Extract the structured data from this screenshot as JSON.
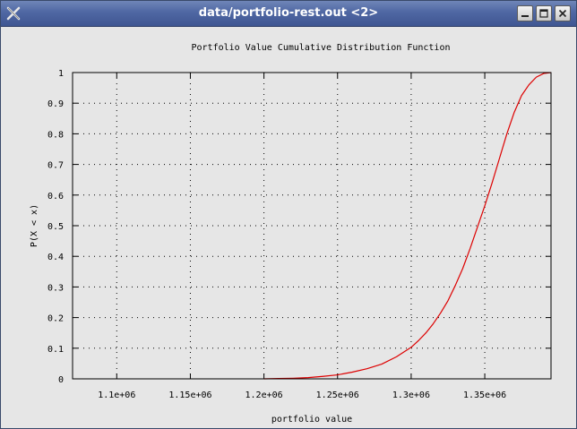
{
  "window": {
    "title": "data/portfolio-rest.out <2>",
    "buttons": [
      "minimize",
      "maximize",
      "close"
    ],
    "icons": [
      "app-x-icon",
      "minimize-icon",
      "maximize-icon",
      "close-icon"
    ]
  },
  "colors": {
    "titlebar": "#4f67a3",
    "plot_background": "#e6e6e6",
    "curve": "#dd0000"
  },
  "chart_data": {
    "type": "line",
    "title": "Portfolio Value Cumulative Distribution Function",
    "xlabel": "portfolio value",
    "ylabel": "P(X < x)",
    "xlim": [
      1070000,
      1395000
    ],
    "ylim": [
      0,
      1
    ],
    "grid": true,
    "x_ticks": [
      1100000,
      1150000,
      1200000,
      1250000,
      1300000,
      1350000
    ],
    "x_tick_labels": [
      "1.1e+06",
      "1.15e+06",
      "1.2e+06",
      "1.25e+06",
      "1.3e+06",
      "1.35e+06"
    ],
    "y_ticks": [
      0,
      0.1,
      0.2,
      0.3,
      0.4,
      0.5,
      0.6,
      0.7,
      0.8,
      0.9,
      1
    ],
    "y_tick_labels": [
      "0",
      "0.1",
      "0.2",
      "0.3",
      "0.4",
      "0.5",
      "0.6",
      "0.7",
      "0.8",
      "0.9",
      "1"
    ],
    "series": [
      {
        "x": [
          1200000,
          1210000,
          1220000,
          1230000,
          1240000,
          1250000,
          1260000,
          1270000,
          1280000,
          1290000,
          1300000,
          1305000,
          1310000,
          1315000,
          1320000,
          1325000,
          1330000,
          1335000,
          1340000,
          1345000,
          1350000,
          1355000,
          1360000,
          1365000,
          1370000,
          1375000,
          1380000,
          1385000,
          1390000,
          1395000
        ],
        "y": [
          0,
          0.001,
          0.002,
          0.004,
          0.008,
          0.013,
          0.022,
          0.033,
          0.048,
          0.072,
          0.103,
          0.125,
          0.15,
          0.18,
          0.215,
          0.255,
          0.305,
          0.36,
          0.425,
          0.495,
          0.565,
          0.64,
          0.72,
          0.8,
          0.87,
          0.925,
          0.96,
          0.985,
          0.997,
          1
        ]
      }
    ]
  }
}
